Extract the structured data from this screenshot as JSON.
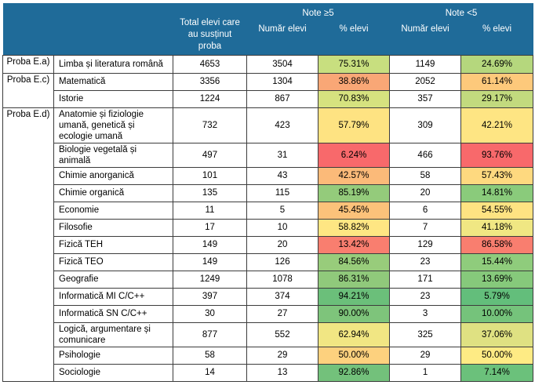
{
  "header": {
    "total": "Total elevi care au susținut proba",
    "group_pass": "Note ≥5",
    "group_fail": "Note <5",
    "count_label": "Număr elevi",
    "pct_label": "% elevi"
  },
  "groups": [
    {
      "label": "Proba E.a)",
      "rows": [
        {
          "subject": "Limba și literatura română",
          "total": "4653",
          "pass_n": "3504",
          "pass_pct": "75.31%",
          "pass_color": "#c8df7f",
          "fail_n": "1149",
          "fail_pct": "24.69%",
          "fail_color": "#b5d77d"
        }
      ]
    },
    {
      "label": "Proba E.c)",
      "rows": [
        {
          "subject": "Matematică",
          "total": "3356",
          "pass_n": "1304",
          "pass_pct": "38.86%",
          "pass_color": "#f9a776",
          "fail_n": "2052",
          "fail_pct": "61.14%",
          "fail_color": "#fdc97b"
        },
        {
          "subject": "Istorie",
          "total": "1224",
          "pass_n": "867",
          "pass_pct": "70.83%",
          "pass_color": "#d6e27f",
          "fail_n": "357",
          "fail_pct": "29.17%",
          "fail_color": "#c2da7e"
        }
      ]
    },
    {
      "label": "Proba E.d)",
      "rows": [
        {
          "subject": "Anatomie și fiziologie umană, genetică și ecologie umană",
          "total": "732",
          "pass_n": "423",
          "pass_pct": "57.79%",
          "pass_color": "#fee382",
          "fail_n": "309",
          "fail_pct": "42.21%",
          "fail_color": "#fee583",
          "size": "tall"
        },
        {
          "subject": "Biologie vegetală și animală",
          "total": "497",
          "pass_n": "31",
          "pass_pct": "6.24%",
          "pass_color": "#f8696b",
          "fail_n": "466",
          "fail_pct": "93.76%",
          "fail_color": "#f8696b",
          "size": "mid"
        },
        {
          "subject": "Chimie anorganică",
          "total": "101",
          "pass_n": "43",
          "pass_pct": "42.57%",
          "pass_color": "#fbba79",
          "fail_n": "58",
          "fail_pct": "57.43%",
          "fail_color": "#fed97f"
        },
        {
          "subject": "Chimie organică",
          "total": "135",
          "pass_n": "115",
          "pass_pct": "85.19%",
          "pass_color": "#94cb7b",
          "fail_n": "20",
          "fail_pct": "14.81%",
          "fail_color": "#8acb7b"
        },
        {
          "subject": "Economie",
          "total": "11",
          "pass_n": "5",
          "pass_pct": "45.45%",
          "pass_color": "#fcc27a",
          "fail_n": "6",
          "fail_pct": "54.55%",
          "fail_color": "#fee382"
        },
        {
          "subject": "Filosofie",
          "total": "17",
          "pass_n": "10",
          "pass_pct": "58.82%",
          "pass_color": "#fee683",
          "fail_n": "7",
          "fail_pct": "41.18%",
          "fail_color": "#f0e783"
        },
        {
          "subject": "Fizică TEH",
          "total": "149",
          "pass_n": "20",
          "pass_pct": "13.42%",
          "pass_color": "#f97e6f",
          "fail_n": "129",
          "fail_pct": "86.58%",
          "fail_color": "#f97e6f"
        },
        {
          "subject": "Fizică TEO",
          "total": "149",
          "pass_n": "126",
          "pass_pct": "84.56%",
          "pass_color": "#98cc7b",
          "fail_n": "23",
          "fail_pct": "15.44%",
          "fail_color": "#8fcc7c"
        },
        {
          "subject": "Geografie",
          "total": "1249",
          "pass_n": "1078",
          "pass_pct": "86.31%",
          "pass_color": "#90c97b",
          "fail_n": "171",
          "fail_pct": "13.69%",
          "fail_color": "#86c97b"
        },
        {
          "subject": "Informatică MI C/C++",
          "total": "397",
          "pass_n": "374",
          "pass_pct": "94.21%",
          "pass_color": "#6bbf7a",
          "fail_n": "23",
          "fail_pct": "5.79%",
          "fail_color": "#63be7b"
        },
        {
          "subject": "Informatică SN C/C++",
          "total": "30",
          "pass_n": "27",
          "pass_pct": "90.00%",
          "pass_color": "#7ec47b",
          "fail_n": "3",
          "fail_pct": "10.00%",
          "fail_color": "#75c37b"
        },
        {
          "subject": "Logică, argumentare și comunicare",
          "total": "877",
          "pass_n": "552",
          "pass_pct": "62.94%",
          "pass_color": "#f1e683",
          "fail_n": "325",
          "fail_pct": "37.06%",
          "fail_color": "#dfe182",
          "size": "mid"
        },
        {
          "subject": "Psihologie",
          "total": "58",
          "pass_n": "29",
          "pass_pct": "50.00%",
          "pass_color": "#fdd17e",
          "fail_n": "29",
          "fail_pct": "50.00%",
          "fail_color": "#feeb84"
        },
        {
          "subject": "Sociologie",
          "total": "14",
          "pass_n": "13",
          "pass_pct": "92.86%",
          "pass_color": "#73c17b",
          "fail_n": "1",
          "fail_pct": "7.14%",
          "fail_color": "#6bc17b"
        }
      ]
    }
  ]
}
